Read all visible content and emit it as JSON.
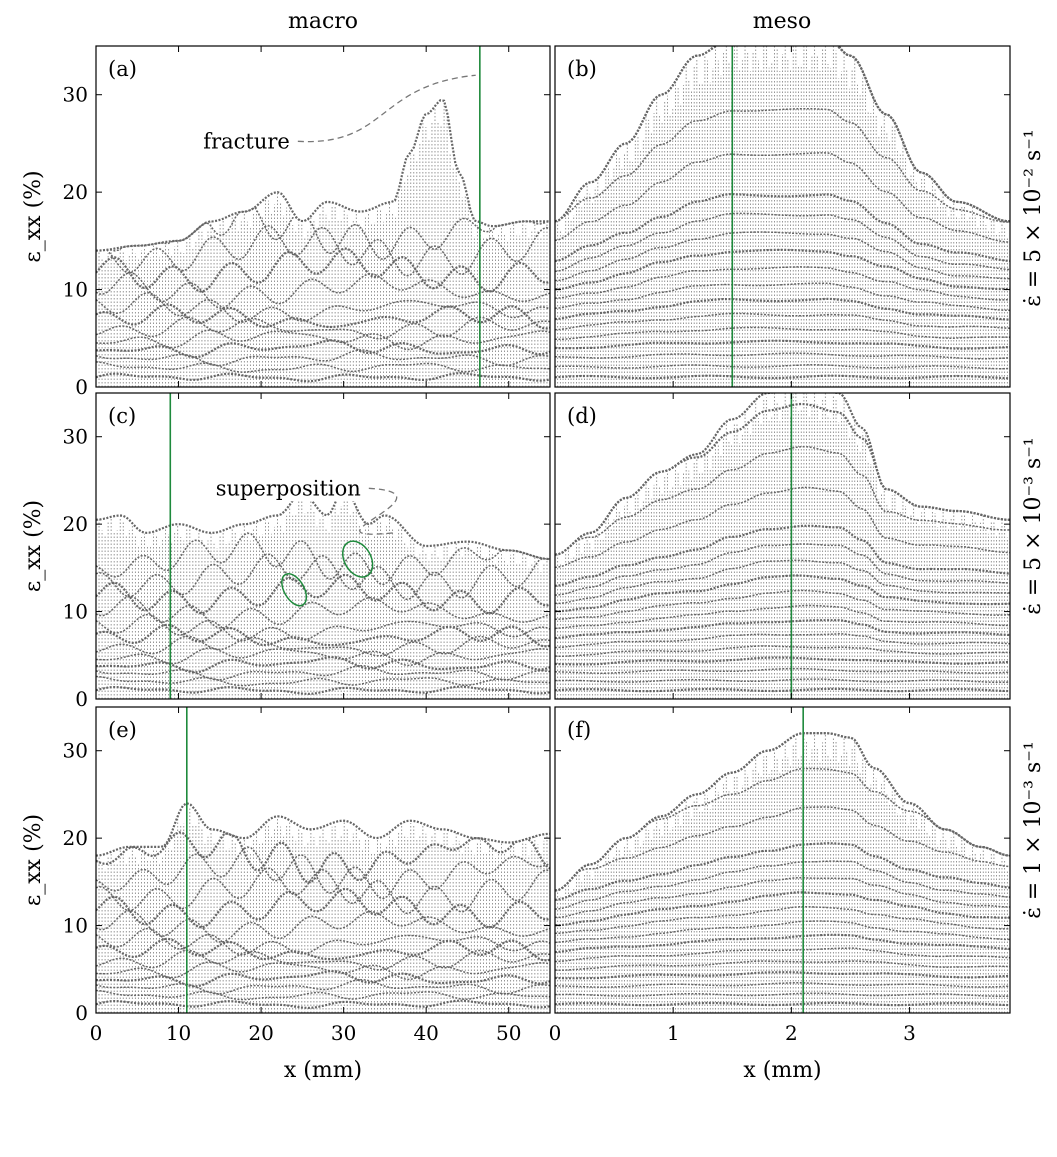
{
  "figure": {
    "column_titles": [
      "macro",
      "meso"
    ],
    "row_labels": [
      "ε̇ = 5 × 10⁻² s⁻¹",
      "ε̇ = 5 × 10⁻³ s⁻¹",
      "ε̇ = 1 × 10⁻³ s⁻¹"
    ],
    "colors": {
      "curves": "#666666",
      "marker_line": "#1e8a3c",
      "frame": "#000000",
      "annotation_line": "#777777"
    }
  },
  "chart_data": [
    {
      "id": "a",
      "type": "line",
      "panel_label": "(a)",
      "column": "macro",
      "row": 0,
      "xlabel": "",
      "ylabel": "ε_xx (%)",
      "xlim": [
        0,
        55
      ],
      "ylim": [
        0,
        35
      ],
      "xticks": [],
      "yticks": [
        0,
        10,
        20,
        30
      ],
      "marker_x": 46.5,
      "annotation": {
        "text": "fracture",
        "text_x": 13,
        "text_y": 24.5,
        "path_to": [
          46,
          32
        ]
      },
      "envelope_x": [
        0,
        5,
        10,
        14,
        18,
        22,
        25,
        28,
        32,
        36,
        38,
        40,
        42,
        44,
        46,
        48,
        52,
        55
      ],
      "envelope_y": [
        14,
        14.5,
        15,
        17,
        18,
        20,
        17,
        19,
        18,
        19,
        24,
        28,
        29.5,
        22,
        17,
        16.5,
        17,
        17
      ],
      "levels": [
        1,
        2,
        3,
        4,
        5,
        6,
        7,
        8,
        10,
        12,
        14,
        16
      ],
      "bumpy": true
    },
    {
      "id": "b",
      "type": "line",
      "panel_label": "(b)",
      "column": "meso",
      "row": 0,
      "xlabel": "",
      "ylabel": "",
      "xlim": [
        0,
        3.85
      ],
      "ylim": [
        0,
        35
      ],
      "xticks": [],
      "yticks": [],
      "marker_x": 1.5,
      "envelope_x": [
        0,
        0.3,
        0.6,
        0.9,
        1.2,
        1.5,
        1.7,
        1.9,
        2.1,
        2.3,
        2.5,
        2.8,
        3.1,
        3.4,
        3.85
      ],
      "envelope_y": [
        17,
        21,
        25,
        30,
        34,
        36,
        36,
        36,
        36,
        36,
        34,
        28,
        22,
        19,
        17
      ],
      "levels": [
        1,
        2,
        3,
        4,
        5,
        6,
        7,
        8,
        9,
        10,
        11,
        12,
        13,
        15,
        17,
        20,
        23
      ],
      "bumpy": false
    },
    {
      "id": "c",
      "type": "line",
      "panel_label": "(c)",
      "column": "macro",
      "row": 1,
      "xlabel": "",
      "ylabel": "ε_xx (%)",
      "xlim": [
        0,
        55
      ],
      "ylim": [
        0,
        35
      ],
      "xticks": [],
      "yticks": [
        0,
        10,
        20,
        30
      ],
      "marker_x": 9,
      "annotation": {
        "text": "superposition",
        "text_x": 14.5,
        "text_y": 23.3,
        "path_to": [
          36,
          19
        ]
      },
      "ellipses": [
        {
          "cx": 24,
          "cy": 12.5,
          "rx": 1.2,
          "ry": 2.0
        },
        {
          "cx": 31.7,
          "cy": 16,
          "rx": 1.6,
          "ry": 2.2
        }
      ],
      "envelope_x": [
        0,
        3,
        6,
        10,
        14,
        18,
        22,
        25,
        28,
        30,
        33,
        35,
        40,
        45,
        50,
        55
      ],
      "envelope_y": [
        20.5,
        21,
        19,
        20,
        19,
        20,
        21,
        23.5,
        21,
        24,
        20,
        21,
        17.5,
        18,
        17,
        16
      ],
      "levels": [
        1,
        2,
        3,
        4,
        5,
        6,
        7,
        8,
        10,
        12,
        14,
        16
      ],
      "bumpy": true
    },
    {
      "id": "d",
      "type": "line",
      "panel_label": "(d)",
      "column": "meso",
      "row": 1,
      "xlabel": "",
      "ylabel": "",
      "xlim": [
        0,
        3.85
      ],
      "ylim": [
        0,
        35
      ],
      "xticks": [],
      "yticks": [],
      "marker_x": 2.0,
      "envelope_x": [
        0,
        0.3,
        0.6,
        0.9,
        1.2,
        1.5,
        1.8,
        2.1,
        2.4,
        2.6,
        2.8,
        3.1,
        3.4,
        3.85
      ],
      "envelope_y": [
        16.5,
        19,
        23,
        26,
        28,
        32,
        35,
        36,
        35,
        31,
        24,
        22,
        21.5,
        20.5
      ],
      "levels": [
        1,
        2,
        3,
        4,
        5,
        6,
        7,
        8,
        9,
        10,
        11,
        12,
        13,
        15,
        17,
        19,
        22
      ],
      "bumpy": false
    },
    {
      "id": "e",
      "type": "line",
      "panel_label": "(e)",
      "column": "macro",
      "row": 2,
      "xlabel": "x (mm)",
      "ylabel": "ε_xx (%)",
      "xlim": [
        0,
        55
      ],
      "ylim": [
        0,
        35
      ],
      "xticks": [
        0,
        10,
        20,
        30,
        40,
        50
      ],
      "yticks": [
        0,
        10,
        20,
        30
      ],
      "marker_x": 11,
      "envelope_x": [
        0,
        4,
        8,
        11,
        14,
        18,
        22,
        26,
        30,
        34,
        38,
        42,
        46,
        50,
        55
      ],
      "envelope_y": [
        18,
        19,
        19,
        24,
        21,
        20,
        22.5,
        21,
        22,
        20,
        22,
        21,
        20,
        19.5,
        20.5
      ],
      "levels": [
        1,
        2,
        3,
        4,
        5,
        6,
        7,
        8,
        10,
        12,
        14,
        16,
        18
      ],
      "bumpy": true
    },
    {
      "id": "f",
      "type": "line",
      "panel_label": "(f)",
      "column": "meso",
      "row": 2,
      "xlabel": "x (mm)",
      "ylabel": "",
      "xlim": [
        0,
        3.85
      ],
      "ylim": [
        0,
        35
      ],
      "xticks": [
        0,
        1,
        2,
        3
      ],
      "yticks": [],
      "marker_x": 2.1,
      "envelope_x": [
        0,
        0.3,
        0.6,
        0.9,
        1.2,
        1.5,
        1.8,
        2.1,
        2.3,
        2.5,
        2.7,
        3.0,
        3.3,
        3.6,
        3.85
      ],
      "envelope_y": [
        14,
        17,
        20,
        22.5,
        25,
        27.5,
        30,
        32,
        32,
        31.5,
        28,
        24,
        21,
        19,
        18
      ],
      "levels": [
        1,
        2,
        3,
        4,
        5,
        6,
        7,
        8,
        9,
        10,
        11,
        12,
        13,
        15,
        17,
        19
      ],
      "bumpy": false
    }
  ]
}
